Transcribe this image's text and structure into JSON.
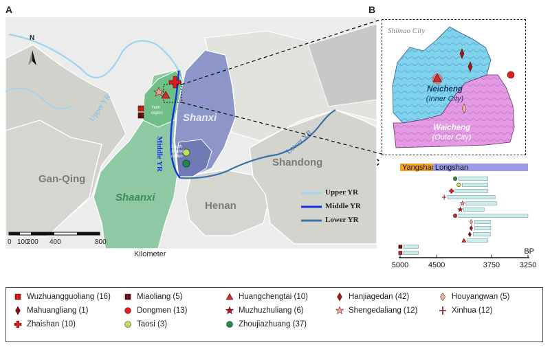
{
  "panels": {
    "a": "A",
    "b": "B",
    "c": "C"
  },
  "map_a": {
    "regions": {
      "gan_qing": "Gan-Qing",
      "shaanxi": "Shaanxi",
      "shanxi": "Shanxi",
      "henan": "Henan",
      "shandong": "Shandong",
      "yulin": "Yulin\nregion",
      "south_shanxi": "South\nShanxi\nregion"
    },
    "rivers": {
      "upper": "Upper YR",
      "middle": "Middle YR",
      "lower": "Lower YR"
    },
    "river_legend": [
      "Upper YR",
      "Middle YR",
      "Lower YR"
    ],
    "river_colors": {
      "upper": "#9fd3f0",
      "middle": "#1030e0",
      "lower": "#3a70a8"
    },
    "north": "N",
    "scale": {
      "ticks": [
        "0",
        "100",
        "200",
        "400",
        "800"
      ],
      "unit": "Kilometer"
    }
  },
  "map_b": {
    "city": "Shimao City",
    "inner": "Neicheng",
    "inner_en": "(Inner City)",
    "outer": "Waicheng",
    "outer_en": "(Outer City)",
    "inner_color": "#7fd3ef",
    "outer_color": "#e59ae6"
  },
  "chart_data": {
    "type": "range-timeline",
    "xlabel": "BP",
    "xlim": [
      5000,
      3250
    ],
    "ticks": [
      5000,
      4500,
      3750,
      3250
    ],
    "tick_labels": [
      "5000",
      "4500",
      "3750",
      "3250"
    ],
    "periods": [
      {
        "name": "Yangshao",
        "start": 5000,
        "end": 4550,
        "color": "#f5a31f"
      },
      {
        "name": "Longshan",
        "start": 4550,
        "end": 3250,
        "color": "#9a9ae6"
      }
    ],
    "rows": [
      {
        "site": "Zhoujiazhuang",
        "start": 4200,
        "end": 3800
      },
      {
        "site": "Taosi",
        "start": 4150,
        "end": 3800
      },
      {
        "site": "Zhaishan",
        "start": 4250,
        "end": 3800
      },
      {
        "site": "Xinhua",
        "start": 4350,
        "end": 3700
      },
      {
        "site": "Shengedaliang",
        "start": 4100,
        "end": 3680
      },
      {
        "site": "Muzhuzhuliang",
        "start": 4130,
        "end": 3850
      },
      {
        "site": "Dongmen",
        "start": 4200,
        "end": 3250
      },
      {
        "site": "Houyangwan",
        "start": 3980,
        "end": 3760
      },
      {
        "site": "Hanjiagedan",
        "start": 3980,
        "end": 3760
      },
      {
        "site": "Mahuangliang",
        "start": 4000,
        "end": 3760
      },
      {
        "site": "Huangchengtai",
        "start": 4080,
        "end": 3800
      },
      {
        "site": "Miaoliang",
        "start": 4950,
        "end": 4750
      },
      {
        "site": "Wuzhuangguoliang",
        "start": 4950,
        "end": 4750
      }
    ]
  },
  "legend": [
    {
      "label": "Wuzhuangguoliang (16)",
      "shape": "square",
      "color": "#c81e1e"
    },
    {
      "label": "Miaoliang (5)",
      "shape": "square",
      "color": "#6b1010"
    },
    {
      "label": "Huangchengtai (10)",
      "shape": "triangle",
      "color": "#d42a2a"
    },
    {
      "label": "Hanjiagedan (42)",
      "shape": "diamond",
      "color": "#a8181d"
    },
    {
      "label": "Houyangwan (5)",
      "shape": "diamond",
      "color": "#e9b2a6"
    },
    {
      "label": "Mahuangliang (1)",
      "shape": "diamond",
      "color": "#7a1018"
    },
    {
      "label": "Dongmen (13)",
      "shape": "circle",
      "color": "#e02020"
    },
    {
      "label": "Muzhuzhuliang (6)",
      "shape": "star",
      "color": "#b31515"
    },
    {
      "label": "Shengedaliang (12)",
      "shape": "star",
      "color": "#e8a0a0"
    },
    {
      "label": "Xinhua (12)",
      "shape": "cross",
      "color": "#8a1424"
    },
    {
      "label": "Zhaishan (10)",
      "shape": "plus",
      "color": "#e01a1a"
    },
    {
      "label": "Taosi (3)",
      "shape": "circle",
      "color": "#bfe060"
    },
    {
      "label": "Zhoujiazhuang (37)",
      "shape": "circle",
      "color": "#1f8a4c"
    }
  ]
}
